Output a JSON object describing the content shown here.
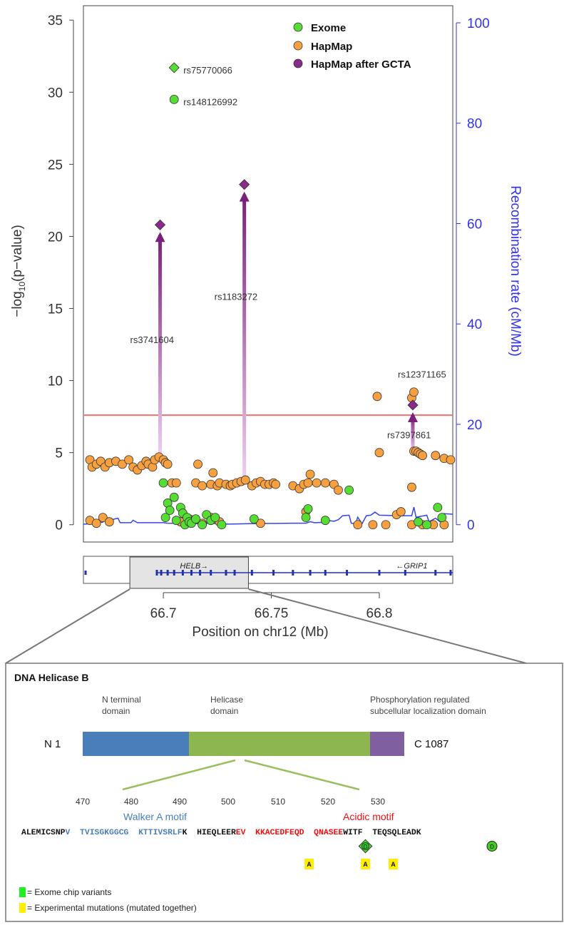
{
  "chart_data": {
    "type": "scatter",
    "xlabel": "Position on chr12 (Mb)",
    "ylabel": "-log10(p-value)",
    "ylabel_sub": "10",
    "y2label": "Recombination rate (cM/Mb)",
    "xlim": [
      66.663,
      66.834
    ],
    "ylim": [
      -1.2,
      36
    ],
    "y2lim": [
      0,
      100
    ],
    "xticks": [
      66.7,
      66.75,
      66.8
    ],
    "xtick_labels": [
      "66.7",
      "66.75",
      "66.8"
    ],
    "yticks": [
      0,
      5,
      10,
      15,
      20,
      25,
      30,
      35
    ],
    "yticks2": [
      0,
      20,
      40,
      60,
      80,
      100
    ],
    "threshold": 7.6,
    "legend_position": "top-right",
    "colors": {
      "exome": "#55dd33",
      "hapmap": "#f7a040",
      "gcta": "#8a2a8a",
      "recomb": "#3344ee",
      "threshold": "#f07070",
      "axis_right": "#3333ee"
    },
    "legend": [
      {
        "label": "Exome",
        "color": "#55dd33"
      },
      {
        "label": "HapMap",
        "color": "#f7a040"
      },
      {
        "label": "HapMap after GCTA",
        "color": "#8a2a8a"
      }
    ],
    "series": [
      {
        "name": "HapMap",
        "color": "#f7a040",
        "points": [
          [
            66.666,
            4.5
          ],
          [
            66.667,
            4.0
          ],
          [
            66.669,
            4.2
          ],
          [
            66.671,
            4.4
          ],
          [
            66.673,
            4.0
          ],
          [
            66.675,
            4.3
          ],
          [
            66.678,
            4.4
          ],
          [
            66.681,
            4.2
          ],
          [
            66.684,
            4.5
          ],
          [
            66.686,
            4.0
          ],
          [
            66.688,
            3.8
          ],
          [
            66.69,
            4.1
          ],
          [
            66.692,
            4.4
          ],
          [
            66.693,
            4.2
          ],
          [
            66.695,
            4.0
          ],
          [
            66.696,
            4.5
          ],
          [
            66.698,
            4.7
          ],
          [
            66.7,
            4.5
          ],
          [
            66.701,
            4.3
          ],
          [
            66.702,
            4.2
          ],
          [
            66.704,
            2.9
          ],
          [
            66.706,
            2.9
          ],
          [
            66.715,
            2.9
          ],
          [
            66.716,
            4.2
          ],
          [
            66.718,
            2.7
          ],
          [
            66.722,
            2.8
          ],
          [
            66.723,
            3.6
          ],
          [
            66.725,
            2.7
          ],
          [
            66.726,
            2.9
          ],
          [
            66.729,
            2.8
          ],
          [
            66.731,
            2.7
          ],
          [
            66.732,
            2.8
          ],
          [
            66.734,
            2.9
          ],
          [
            66.736,
            3.0
          ],
          [
            66.738,
            3.1
          ],
          [
            66.741,
            2.7
          ],
          [
            66.743,
            2.9
          ],
          [
            66.745,
            3.0
          ],
          [
            66.747,
            2.8
          ],
          [
            66.749,
            2.8
          ],
          [
            66.751,
            2.9
          ],
          [
            66.752,
            2.8
          ],
          [
            66.76,
            2.7
          ],
          [
            66.763,
            2.5
          ],
          [
            66.765,
            2.8
          ],
          [
            66.767,
            2.9
          ],
          [
            66.768,
            3.5
          ],
          [
            66.771,
            2.9
          ],
          [
            66.775,
            2.9
          ],
          [
            66.779,
            2.8
          ],
          [
            66.781,
            2.4
          ],
          [
            66.799,
            8.9
          ],
          [
            66.8,
            5.0
          ],
          [
            66.808,
            0.7
          ],
          [
            66.81,
            0.9
          ],
          [
            66.815,
            2.6
          ],
          [
            66.816,
            5.1
          ],
          [
            66.817,
            5.1
          ],
          [
            66.818,
            5.0
          ],
          [
            66.819,
            4.9
          ],
          [
            66.82,
            4.8
          ],
          [
            66.826,
            4.8
          ],
          [
            66.83,
            4.6
          ],
          [
            66.833,
            4.5
          ],
          [
            66.666,
            0.3
          ],
          [
            66.669,
            0.1
          ],
          [
            66.672,
            0.5
          ],
          [
            66.675,
            0.2
          ],
          [
            66.708,
            0.2
          ],
          [
            66.712,
            0.4
          ],
          [
            66.718,
            0.1
          ],
          [
            66.722,
            0.5
          ],
          [
            66.726,
            0.2
          ],
          [
            66.745,
            0.1
          ],
          [
            66.766,
            0.9
          ],
          [
            66.79,
            0.0
          ],
          [
            66.797,
            0.0
          ],
          [
            66.803,
            0.0
          ],
          [
            66.815,
            0.0
          ],
          [
            66.82,
            0.0
          ],
          [
            66.825,
            0.0
          ],
          [
            66.83,
            0.0
          ],
          [
            66.815,
            8.8
          ],
          [
            66.816,
            9.2
          ]
        ]
      },
      {
        "name": "Exome",
        "color": "#55dd33",
        "points": [
          [
            66.7,
            2.9
          ],
          [
            66.701,
            0.5
          ],
          [
            66.702,
            1.5
          ],
          [
            66.703,
            1.0
          ],
          [
            66.705,
            1.9
          ],
          [
            66.706,
            0.3
          ],
          [
            66.708,
            1.2
          ],
          [
            66.709,
            0.8
          ],
          [
            66.71,
            0.0
          ],
          [
            66.711,
            0.5
          ],
          [
            66.712,
            0.2
          ],
          [
            66.713,
            0.1
          ],
          [
            66.715,
            0.4
          ],
          [
            66.718,
            0.0
          ],
          [
            66.72,
            0.7
          ],
          [
            66.722,
            0.3
          ],
          [
            66.724,
            0.5
          ],
          [
            66.727,
            0.0
          ],
          [
            66.742,
            0.4
          ],
          [
            66.766,
            0.5
          ],
          [
            66.767,
            1.1
          ],
          [
            66.775,
            0.3
          ],
          [
            66.786,
            2.4
          ],
          [
            66.818,
            0.2
          ],
          [
            66.822,
            0.0
          ],
          [
            66.827,
            1.2
          ],
          [
            66.829,
            0.5
          ]
        ]
      },
      {
        "name": "HapMap after GCTA",
        "color": "#8a2a8a",
        "points": [
          [
            66.6985,
            20.8
          ],
          [
            66.7375,
            23.6
          ],
          [
            66.8155,
            8.3
          ]
        ]
      }
    ],
    "labeled_snps": [
      {
        "label": "rs75770066",
        "x": 66.705,
        "y": 31.7,
        "color": "#55dd33",
        "shape": "diamond"
      },
      {
        "label": "rs148126992",
        "x": 66.705,
        "y": 29.5,
        "color": "#55dd33",
        "shape": "circle"
      }
    ],
    "gcta_arrows": [
      {
        "label": "rs3741604",
        "x": 66.6985,
        "from": 4.6,
        "to": 20.8
      },
      {
        "label": "rs1183272",
        "x": 66.7375,
        "from": 3.0,
        "to": 23.6
      },
      {
        "label": "rs7397861",
        "x": 66.8155,
        "from": 5.0,
        "to": 8.3
      },
      {
        "label": "rs12371165",
        "x": 66.8165,
        "from": 9.2,
        "to": 9.2
      }
    ],
    "recombination": [
      [
        66.663,
        0.1
      ],
      [
        66.667,
        0.2
      ],
      [
        66.67,
        0.4
      ],
      [
        66.672,
        0.5
      ],
      [
        66.673,
        1.5
      ],
      [
        66.674,
        0.5
      ],
      [
        66.676,
        0.6
      ],
      [
        66.677,
        1.1
      ],
      [
        66.679,
        1.3
      ],
      [
        66.68,
        0.4
      ],
      [
        66.685,
        0.4
      ],
      [
        66.686,
        0.9
      ],
      [
        66.688,
        0.4
      ],
      [
        66.7,
        0.4
      ],
      [
        66.702,
        0.3
      ],
      [
        66.718,
        0.2
      ],
      [
        66.722,
        0.3
      ],
      [
        66.728,
        0.1
      ],
      [
        66.74,
        0.2
      ],
      [
        66.76,
        0.3
      ],
      [
        66.766,
        0.3
      ],
      [
        66.768,
        0.6
      ],
      [
        66.77,
        0.4
      ],
      [
        66.776,
        0.5
      ],
      [
        66.777,
        0.8
      ],
      [
        66.779,
        0.7
      ],
      [
        66.781,
        1.0
      ],
      [
        66.783,
        1.8
      ],
      [
        66.786,
        1.9
      ],
      [
        66.787,
        0.3
      ],
      [
        66.789,
        0.2
      ],
      [
        66.79,
        1.5
      ],
      [
        66.792,
        0.2
      ],
      [
        66.794,
        1.8
      ],
      [
        66.796,
        1.9
      ],
      [
        66.798,
        2.5
      ],
      [
        66.8,
        1.9
      ],
      [
        66.81,
        1.8
      ],
      [
        66.815,
        1.8
      ],
      [
        66.816,
        3.5
      ],
      [
        66.817,
        1.5
      ],
      [
        66.822,
        1.9
      ],
      [
        66.823,
        0.6
      ],
      [
        66.826,
        1.3
      ],
      [
        66.828,
        0.6
      ],
      [
        66.83,
        2.2
      ],
      [
        66.834,
        2.1
      ]
    ],
    "genes": [
      {
        "name": "HELB",
        "arrow": "→",
        "from": 66.6965,
        "to": 66.736
      },
      {
        "name": "GRIP1",
        "arrow": "←",
        "from": 66.74,
        "to": 66.834
      }
    ],
    "exons": [
      66.697,
      66.699,
      66.702,
      66.705,
      66.709,
      66.713,
      66.717,
      66.722,
      66.729,
      66.733,
      66.741,
      66.751,
      66.76,
      66.768,
      66.775,
      66.785,
      66.8,
      66.812,
      66.826,
      66.833
    ]
  },
  "protein": {
    "title": "DNA Helicase B",
    "domains": [
      {
        "label_line1": "N terminal",
        "label_line2": "domain",
        "color": "#4a7ebb"
      },
      {
        "label_line1": "Helicase",
        "label_line2": "domain",
        "color": "#8db650"
      },
      {
        "label_line1": "Phosphorylation regulated",
        "label_line2": "subcellular localization domain",
        "color": "#7f5fa0"
      }
    ],
    "n_label": "N  1",
    "c_label": "C 1087",
    "positions": [
      "470",
      "480",
      "490",
      "500",
      "510",
      "520",
      "530"
    ],
    "motifs": [
      {
        "label": "Walker A motif",
        "color": "#4a7ebb"
      },
      {
        "label": "Acidic motif",
        "color": "#ee1111"
      }
    ],
    "sequence": [
      {
        "text": "ALEMICSNP",
        "color": "#111111"
      },
      {
        "text": "V  TVISGKGGCG  KTTIVSRLF",
        "color": "#4a7ebb"
      },
      {
        "text": "K  HIEQLEER",
        "color": "#111111"
      },
      {
        "text": "EV  KKACEDFEQD  QNASEE",
        "color": "#ee1111"
      },
      {
        "text": "WITF  TEQSQLEADK",
        "color": "#111111"
      }
    ],
    "variant_markers": [
      "D",
      "D"
    ],
    "mutation_markers": [
      "A",
      "A",
      "A"
    ],
    "key": [
      {
        "label": "= Exome chip variants",
        "color": "#22ee22"
      },
      {
        "label": "= Experimental mutations (mutated together)",
        "color": "#ffee00"
      }
    ]
  }
}
